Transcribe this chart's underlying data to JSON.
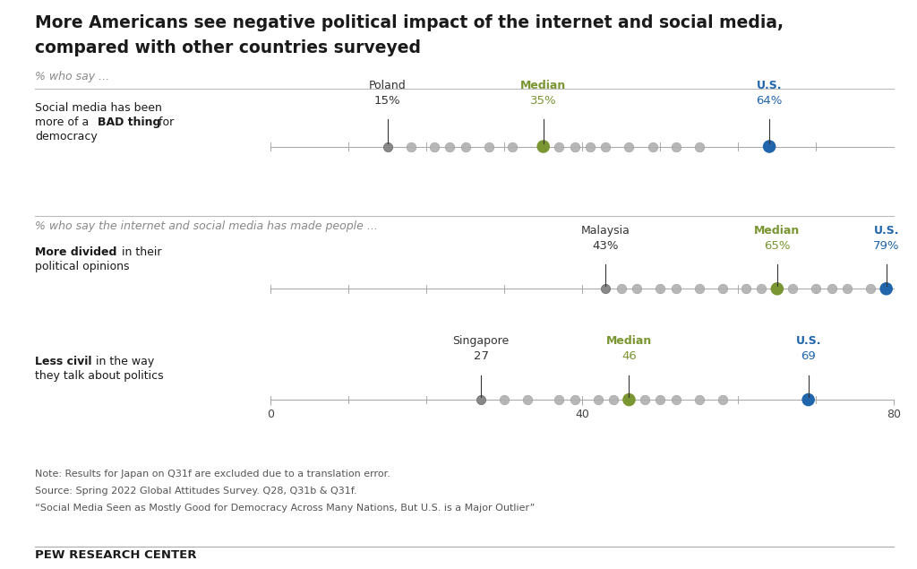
{
  "title_line1": "More Americans see negative political impact of the internet and social media,",
  "title_line2": "compared with other countries surveyed",
  "subtitle1": "% who say ...",
  "subtitle2": "% who say the internet and social media has made people ...",
  "rows": [
    {
      "xmin": 0,
      "xmax": 80,
      "xticks": [],
      "xlabel_vals": [],
      "annotated": [
        {
          "label": "Poland",
          "value": 15,
          "pct": "15%",
          "color": "#333333"
        },
        {
          "label": "Median",
          "value": 35,
          "pct": "35%",
          "color": "#7a9632"
        },
        {
          "label": "U.S.",
          "value": 64,
          "pct": "64%",
          "color": "#2166ac"
        }
      ],
      "other_dots": [
        18,
        21,
        23,
        25,
        28,
        31,
        37,
        39,
        41,
        43,
        46,
        49,
        52,
        55
      ]
    },
    {
      "xmin": 0,
      "xmax": 80,
      "xticks": [],
      "xlabel_vals": [],
      "annotated": [
        {
          "label": "Malaysia",
          "value": 43,
          "pct": "43%",
          "color": "#333333"
        },
        {
          "label": "Median",
          "value": 65,
          "pct": "65%",
          "color": "#7a9632"
        },
        {
          "label": "U.S.",
          "value": 79,
          "pct": "79%",
          "color": "#2166ac"
        }
      ],
      "other_dots": [
        45,
        47,
        50,
        52,
        55,
        58,
        61,
        63,
        67,
        70,
        72,
        74,
        77
      ]
    },
    {
      "xmin": 0,
      "xmax": 80,
      "xticks": [
        0,
        40,
        80
      ],
      "xlabel_vals": [
        "0",
        "40",
        "80"
      ],
      "annotated": [
        {
          "label": "Singapore",
          "value": 27,
          "pct": "27",
          "color": "#333333"
        },
        {
          "label": "Median",
          "value": 46,
          "pct": "46",
          "color": "#7a9632"
        },
        {
          "label": "U.S.",
          "value": 69,
          "pct": "69",
          "color": "#2166ac"
        }
      ],
      "other_dots": [
        30,
        33,
        37,
        39,
        42,
        44,
        48,
        50,
        52,
        55,
        58
      ]
    }
  ],
  "note_lines": [
    "Note: Results for Japan on Q31f are excluded due to a translation error.",
    "Source: Spring 2022 Global Attitudes Survey. Q28, Q31b & Q31f.",
    "“Social Media Seen as Mostly Good for Democracy Across Many Nations, But U.S. is a Major Outlier”"
  ],
  "footer": "PEW RESEARCH CENTER",
  "bg_color": "#ffffff",
  "dot_gray": "#b0b0b0",
  "median_color": "#7a9632",
  "us_color": "#2166ac",
  "text_dark": "#1a1a1a",
  "text_gray": "#666666",
  "line_color": "#bbbbbb"
}
